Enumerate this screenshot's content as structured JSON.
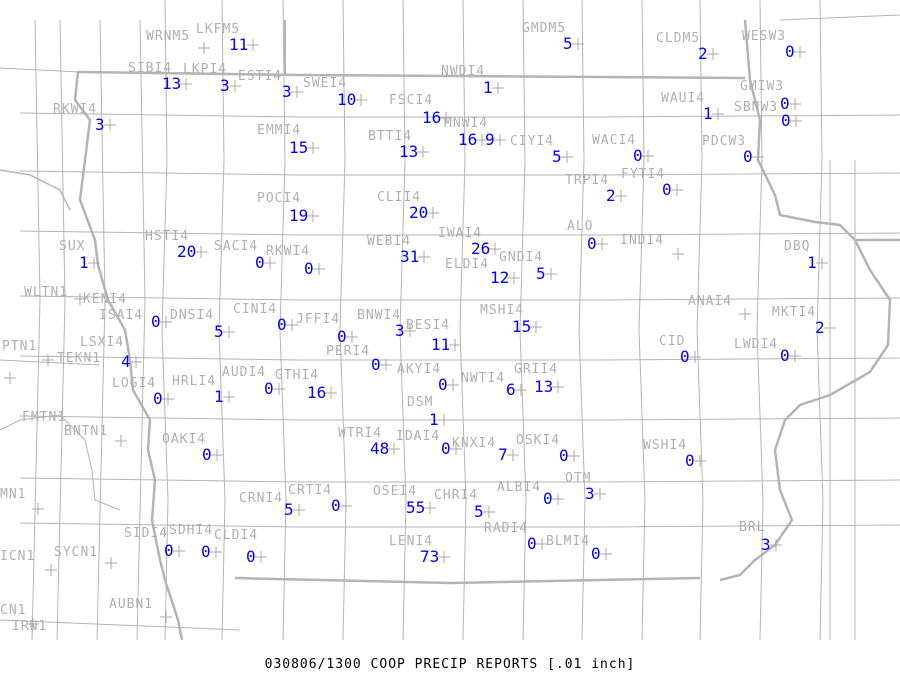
{
  "title": "030806/1300 COOP PRECIP REPORTS [.01 inch]",
  "map": {
    "line_color": "#b4b4b4",
    "value_color": "#0000ff",
    "label_color": "#b0b0b0"
  },
  "stations": [
    {
      "id": "WRNM5",
      "value": ""
    },
    {
      "id": "LKFM5",
      "value": "11"
    },
    {
      "id": "SIBI4",
      "value": "13"
    },
    {
      "id": "LKPI4",
      "value": "3"
    },
    {
      "id": "ESTI4",
      "value": "3"
    },
    {
      "id": "SWEI4",
      "value": "10"
    },
    {
      "id": "NWDI4",
      "value": "1"
    },
    {
      "id": "GMDM5",
      "value": "5"
    },
    {
      "id": "CLDM5",
      "value": "2"
    },
    {
      "id": "WESW3",
      "value": "0"
    },
    {
      "id": "RKWI4",
      "value": "3"
    },
    {
      "id": "FSCI4",
      "value": "16"
    },
    {
      "id": "MNWI4",
      "value": "16"
    },
    {
      "id": "",
      "value": "9"
    },
    {
      "id": "EMMI4",
      "value": "15"
    },
    {
      "id": "BTTI4",
      "value": "13"
    },
    {
      "id": "CIYI4",
      "value": "5"
    },
    {
      "id": "WACI4",
      "value": "0"
    },
    {
      "id": "WAUI4",
      "value": "1"
    },
    {
      "id": "GMIW3",
      "value": "0"
    },
    {
      "id": "SBNW3",
      "value": "0"
    },
    {
      "id": "PDCW3",
      "value": "0"
    },
    {
      "id": "TRPI4",
      "value": "2"
    },
    {
      "id": "FYTI4",
      "value": "0"
    },
    {
      "id": "POCI4",
      "value": "19"
    },
    {
      "id": "CLII4",
      "value": "20"
    },
    {
      "id": "HSTI4",
      "value": "20"
    },
    {
      "id": "SACI4",
      "value": "0"
    },
    {
      "id": "RKWI4",
      "value": "0"
    },
    {
      "id": "WEBI4",
      "value": "31"
    },
    {
      "id": "IWAI4",
      "value": "26"
    },
    {
      "id": "ELDI4",
      "value": "12"
    },
    {
      "id": "GNDI4",
      "value": "5"
    },
    {
      "id": "ALO",
      "value": "0"
    },
    {
      "id": "INDI4",
      "value": ""
    },
    {
      "id": "DBQ",
      "value": "1"
    },
    {
      "id": "SUX",
      "value": "1"
    },
    {
      "id": "WLTN1",
      "value": ""
    },
    {
      "id": "KENI4",
      "value": ""
    },
    {
      "id": "ISAI4",
      "value": "0"
    },
    {
      "id": "DNSI4",
      "value": "5"
    },
    {
      "id": "CINI4",
      "value": "0"
    },
    {
      "id": "JFFI4",
      "value": "0"
    },
    {
      "id": "BNWI4",
      "value": "3"
    },
    {
      "id": "BESI4",
      "value": "11"
    },
    {
      "id": "MSHI4",
      "value": "15"
    },
    {
      "id": "ANAI4",
      "value": ""
    },
    {
      "id": "MKTI4",
      "value": "2"
    },
    {
      "id": "PTN1",
      "value": ""
    },
    {
      "id": "TEKN1",
      "value": ""
    },
    {
      "id": "LSXI4",
      "value": "4"
    },
    {
      "id": "PERI4",
      "value": "0"
    },
    {
      "id": "CID",
      "value": "0"
    },
    {
      "id": "LWDI4",
      "value": "0"
    },
    {
      "id": "LOGI4",
      "value": "0"
    },
    {
      "id": "HRLI4",
      "value": "1"
    },
    {
      "id": "AUDI4",
      "value": "0"
    },
    {
      "id": "GTHI4",
      "value": "16"
    },
    {
      "id": "AKYI4",
      "value": "0"
    },
    {
      "id": "NWTI4",
      "value": "6"
    },
    {
      "id": "GRII4",
      "value": "13"
    },
    {
      "id": "DSM",
      "value": "1"
    },
    {
      "id": "FMTN1",
      "value": ""
    },
    {
      "id": "BNTN1",
      "value": ""
    },
    {
      "id": "OAKI4",
      "value": "0"
    },
    {
      "id": "WTRI4",
      "value": "48"
    },
    {
      "id": "IDAI4",
      "value": "0"
    },
    {
      "id": "KNXI4",
      "value": "7"
    },
    {
      "id": "OSKI4",
      "value": "0"
    },
    {
      "id": "WSHI4",
      "value": "0"
    },
    {
      "id": "MN1",
      "value": ""
    },
    {
      "id": "CRNI4",
      "value": "5"
    },
    {
      "id": "CRTI4",
      "value": "0"
    },
    {
      "id": "OSEI4",
      "value": "55"
    },
    {
      "id": "CHRI4",
      "value": "5"
    },
    {
      "id": "ALBI4",
      "value": "0"
    },
    {
      "id": "OTM",
      "value": "3"
    },
    {
      "id": "SIDI4",
      "value": "0"
    },
    {
      "id": "SDHI4",
      "value": "0"
    },
    {
      "id": "CLDI4",
      "value": "0"
    },
    {
      "id": "LENI4",
      "value": "73"
    },
    {
      "id": "RADI4",
      "value": "0"
    },
    {
      "id": "BLMI4",
      "value": "0"
    },
    {
      "id": "BRL",
      "value": "3"
    },
    {
      "id": "SYCN1",
      "value": ""
    },
    {
      "id": "ICN1",
      "value": ""
    },
    {
      "id": "AUBN1",
      "value": ""
    },
    {
      "id": "CN1",
      "value": ""
    },
    {
      "id": "IRN1",
      "value": ""
    }
  ]
}
